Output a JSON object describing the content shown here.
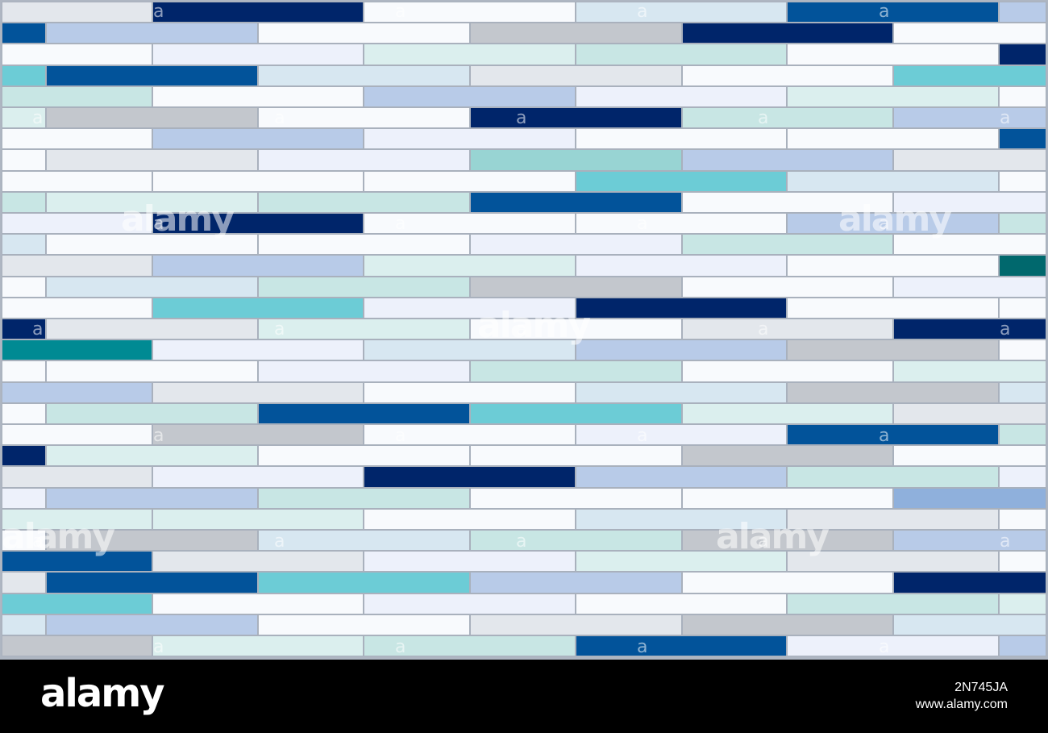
{
  "palette": {
    "W": "#f8fafd",
    "L": "#edf1fb",
    "G": "#e3e7ec",
    "M": "#c3c7cd",
    "P": "#b8cbe8",
    "S": "#d7e7f1",
    "T": "#c8e6e4",
    "U": "#dbefee",
    "C": "#6cccd6",
    "E": "#98d4d3",
    "B": "#02539a",
    "N": "#00256a",
    "K": "#008a93",
    "D": "#00686d",
    "R": "#8fb0dc"
  },
  "rows": [
    "GNWSBP",
    "BPWMNW",
    "WLUTWN",
    "CBSGWC",
    "TWPLUW",
    "UMWNTP",
    "WPLWWB",
    "WGLEPG",
    "WWWCSW",
    "TUTBWL",
    "LNWWPT",
    "SWWLTW",
    "GPULWD",
    "WSTMWL",
    "WCLNWW",
    "NGUWGN",
    "KLSPMW",
    "WWLTWU",
    "PGWSMS",
    "WTBCUG",
    "WMWLBT",
    "NUWWMW",
    "GLNPTL",
    "LPTWWR",
    "UUWSGW",
    "WMSTMP",
    "BGLUGW",
    "GBCPWN",
    "CWLWTU",
    "SPWGMS",
    "MUTBLP"
  ],
  "watermark": {
    "small": "a",
    "large": "alamy"
  },
  "footer": {
    "logo": "alamy",
    "image_id": "2N745JA",
    "site": "www.alamy.com"
  }
}
